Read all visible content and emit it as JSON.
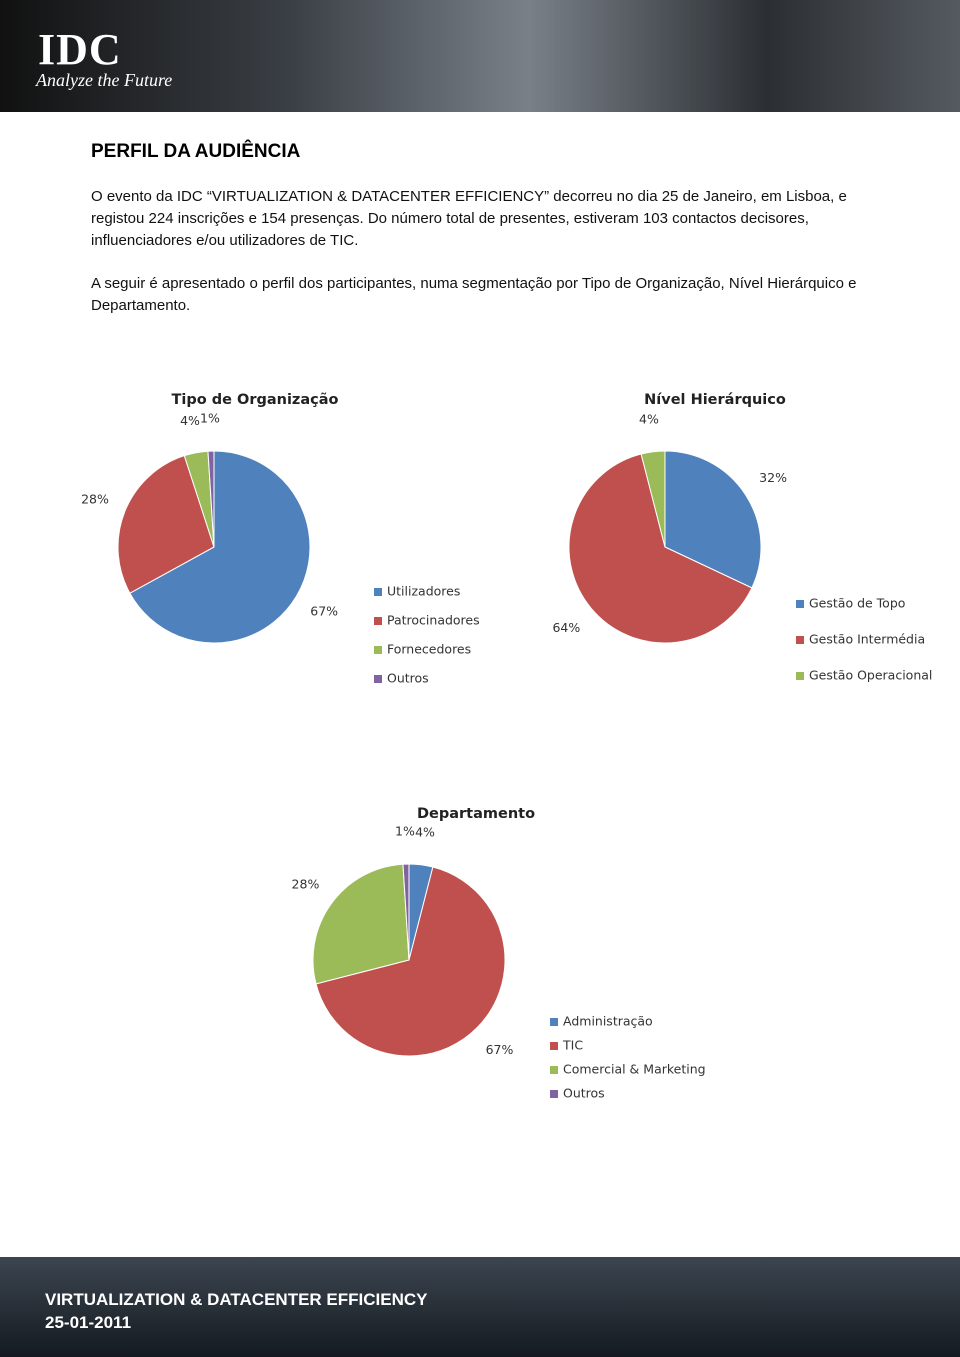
{
  "header": {
    "logo": "IDC",
    "tagline": "Analyze the Future"
  },
  "section_title": "PERFIL DA AUDIÊNCIA",
  "paragraphs": [
    "O evento da IDC “VIRTUALIZATION & DATACENTER EFFICIENCY” decorreu no dia 25 de Janeiro, em Lisboa, e registou 224 inscrições e 154 presenças. Do número total de presentes, estiveram 103 contactos decisores, influenciadores e/ou utilizadores de TIC.",
    "A seguir é apresentado o perfil dos participantes, numa segmentação por Tipo de Organização, Nível Hierárquico e Departamento."
  ],
  "chart_data": [
    {
      "type": "pie",
      "title": "Tipo de Organização",
      "categories": [
        "Utilizadores",
        "Patrocinadores",
        "Fornecedores",
        "Outros"
      ],
      "values": [
        67,
        28,
        4,
        1
      ],
      "value_labels": [
        "67%",
        "28%",
        "4%",
        "1%"
      ],
      "colors": [
        "#4f81bd",
        "#c0504d",
        "#9bbb59",
        "#8064a2"
      ]
    },
    {
      "type": "pie",
      "title": "Nível Hierárquico",
      "categories": [
        "Gestão de Topo",
        "Gestão Intermédia",
        "Gestão Operacional"
      ],
      "values": [
        32,
        64,
        4
      ],
      "value_labels": [
        "32%",
        "64%",
        "4%"
      ],
      "colors": [
        "#4f81bd",
        "#c0504d",
        "#9bbb59"
      ]
    },
    {
      "type": "pie",
      "title": "Departamento",
      "categories": [
        "Administração",
        "TIC",
        "Comercial & Marketing",
        "Outros"
      ],
      "values": [
        4,
        67,
        28,
        1
      ],
      "value_labels": [
        "4%",
        "67%",
        "28%",
        "1%"
      ],
      "colors": [
        "#4f81bd",
        "#c0504d",
        "#9bbb59",
        "#8064a2"
      ]
    }
  ],
  "footer": {
    "event": "VIRTUALIZATION & DATACENTER EFFICIENCY",
    "date": "25-01-2011"
  }
}
